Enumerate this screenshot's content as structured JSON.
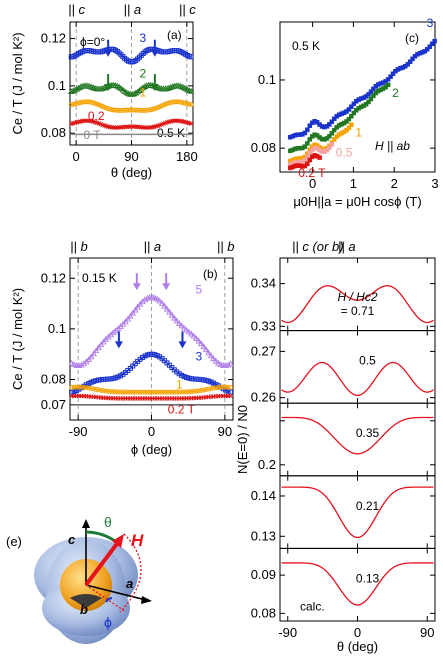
{
  "chart_data": [
    {
      "panel": "(a)",
      "type": "scatter",
      "top_labels": [
        "|| c",
        "|| a",
        "|| c"
      ],
      "xlabel": "θ (deg)",
      "ylabel": "Ce / T (J / mol K²)",
      "xlim": [
        -10,
        190
      ],
      "ylim": [
        0.075,
        0.127
      ],
      "xticks": [
        0,
        90,
        180
      ],
      "yticks": [
        0.08,
        0.1,
        0.12
      ],
      "xtick_labels": [
        "0",
        "90",
        "180"
      ],
      "ytick_labels": [
        "0.08",
        "0.1",
        "0.12"
      ],
      "annotations": [
        "ϕ=0°",
        "0.5 K"
      ],
      "guides": [
        0,
        90,
        180
      ],
      "series": [
        {
          "name": "3",
          "color": "#1a33cc",
          "marker": "square",
          "base": 0.113,
          "amp": 0.0028,
          "mode": "dip",
          "arrows": [
            52,
            128
          ]
        },
        {
          "name": "2",
          "color": "#227722",
          "marker": "triangle",
          "base": 0.0985,
          "amp": 0.0015,
          "mode": "dip",
          "arrows": [
            52,
            128
          ]
        },
        {
          "name": "1",
          "color": "#f5a300",
          "marker": "circle",
          "base": 0.0925,
          "amp": -0.0035,
          "mode": "v"
        },
        {
          "name": "0.2",
          "color": "#dd1111",
          "marker": "cross",
          "base": 0.0845,
          "amp": -0.0025,
          "mode": "v"
        },
        {
          "name": "0 T",
          "color": "#888888",
          "marker": "line",
          "base": 0.0795,
          "amp": 0,
          "mode": "flat"
        }
      ]
    },
    {
      "panel": "(b)",
      "type": "scatter",
      "top_labels": [
        "|| b",
        "|| a",
        "|| b"
      ],
      "xlabel": "ϕ (deg)",
      "ylabel": "Ce / T (J / mol K²)",
      "xlim": [
        -100,
        100
      ],
      "ylim": [
        0.064,
        0.128
      ],
      "xticks": [
        -90,
        0,
        90
      ],
      "yticks": [
        0.07,
        0.08,
        0.1,
        0.12
      ],
      "xtick_labels": [
        "-90",
        "0",
        "90"
      ],
      "ytick_labels": [
        "0.07",
        "0.08",
        "0.1",
        "0.12"
      ],
      "annotations": [
        "0.15 K"
      ],
      "guides": [
        -90,
        0,
        90
      ],
      "series": [
        {
          "name": "5",
          "color": "#b07ee8",
          "marker": "triangle",
          "base": 0.111,
          "amp": -0.024,
          "mode": "dome",
          "arrows": [
            -18,
            18
          ]
        },
        {
          "name": "3",
          "color": "#1a33cc",
          "marker": "square",
          "base": 0.088,
          "amp": -0.012,
          "mode": "dome3",
          "arrows": [
            -40,
            38
          ]
        },
        {
          "name": "1",
          "color": "#f5a300",
          "marker": "circle",
          "base": 0.075,
          "amp": 0.002,
          "mode": "edge"
        },
        {
          "name": "0.2 T",
          "color": "#dd1111",
          "marker": "cross",
          "base": 0.0725,
          "amp": 0.001,
          "mode": "edge"
        },
        {
          "name": "",
          "color": "#555555",
          "marker": "line",
          "base": 0.07,
          "amp": 0,
          "mode": "flat"
        }
      ]
    },
    {
      "panel": "(c)",
      "type": "scatter",
      "xlabel": "μ0H||a = μ0H cosϕ (T)",
      "xlim": [
        -0.8,
        3
      ],
      "ylim": [
        0.073,
        0.117
      ],
      "xticks": [
        0,
        1,
        2,
        3
      ],
      "yticks": [
        0.08,
        0.1
      ],
      "xtick_labels": [
        "0",
        "1",
        "2",
        "3"
      ],
      "ytick_labels": [
        "0.08",
        "0.1"
      ],
      "annotations": [
        "0.5 K",
        "H || ab"
      ],
      "series": [
        {
          "name": "3",
          "color": "#1a33cc",
          "xmax": 3.0,
          "y0": 0.0835,
          "slope": 0.0092
        },
        {
          "name": "2",
          "color": "#227722",
          "xmax": 1.9,
          "y0": 0.0795,
          "slope": 0.0105
        },
        {
          "name": "1",
          "color": "#f5a300",
          "xmax": 1.0,
          "y0": 0.0765,
          "slope": 0.011
        },
        {
          "name": "0.5",
          "color": "#f5a3a3",
          "xmax": 0.5,
          "y0": 0.0755,
          "slope": 0.012
        },
        {
          "name": "0.2 T",
          "color": "#dd1111",
          "xmax": 0.2,
          "y0": 0.0745,
          "slope": 0.01
        }
      ]
    },
    {
      "panel": "(d)",
      "type": "line",
      "top_labels": [
        "|| c (or b)",
        "|| a"
      ],
      "xlabel": "θ (deg)",
      "ylabel": "N(E=0) / N0",
      "xlim": [
        -100,
        100
      ],
      "xticks": [
        -90,
        0,
        90
      ],
      "xtick_labels": [
        "-90",
        "0",
        "90"
      ],
      "annotation": "calc.",
      "header_label": "H / Hc2",
      "subplots": [
        {
          "label": "= 0.71",
          "ylim": [
            0.329,
            0.346
          ],
          "yticks": [
            0.33,
            0.34
          ],
          "ytick_labels": [
            "0.33",
            "0.34"
          ],
          "base": 0.3315,
          "p1": 0.0095,
          "p2": 0.002,
          "center": "dip"
        },
        {
          "label": "0.5",
          "ylim": [
            0.2588,
            0.2745
          ],
          "yticks": [
            0.26,
            0.27
          ],
          "ytick_labels": [
            "0.26",
            "0.27"
          ],
          "base": 0.2605,
          "p1": 0.0055,
          "p2": 0.0035,
          "center": "dip"
        },
        {
          "label": "0.35",
          "ylim": [
            0.195,
            0.228
          ],
          "yticks": [
            0.2,
            0.22
          ],
          "ytick_labels": [
            "0.2",
            ""
          ],
          "base": 0.2215,
          "p1": -0.0165,
          "p2": 0,
          "center": "v"
        },
        {
          "label": "0.21",
          "ylim": [
            0.127,
            0.145
          ],
          "yticks": [
            0.13,
            0.14
          ],
          "ytick_labels": [
            "0.13",
            "0.14"
          ],
          "base": 0.1422,
          "p1": -0.0125,
          "p2": 0,
          "center": "v"
        },
        {
          "label": "0.13",
          "ylim": [
            0.078,
            0.097
          ],
          "yticks": [
            0.08,
            0.09
          ],
          "ytick_labels": [
            "0.08",
            "0.09"
          ],
          "base": 0.0932,
          "p1": -0.011,
          "p2": 0,
          "center": "v"
        }
      ]
    }
  ],
  "schematic": {
    "panel": "(e)",
    "axis_c": "c",
    "axis_a": "a",
    "axis_b": "b",
    "field": "H",
    "theta": "θ",
    "phi": "ϕ",
    "colors": {
      "field": "#e5131e",
      "theta": "#1f7a3a",
      "phi": "#1a33cc",
      "shell": "#8fa9d8",
      "core": "#f0a020"
    }
  }
}
